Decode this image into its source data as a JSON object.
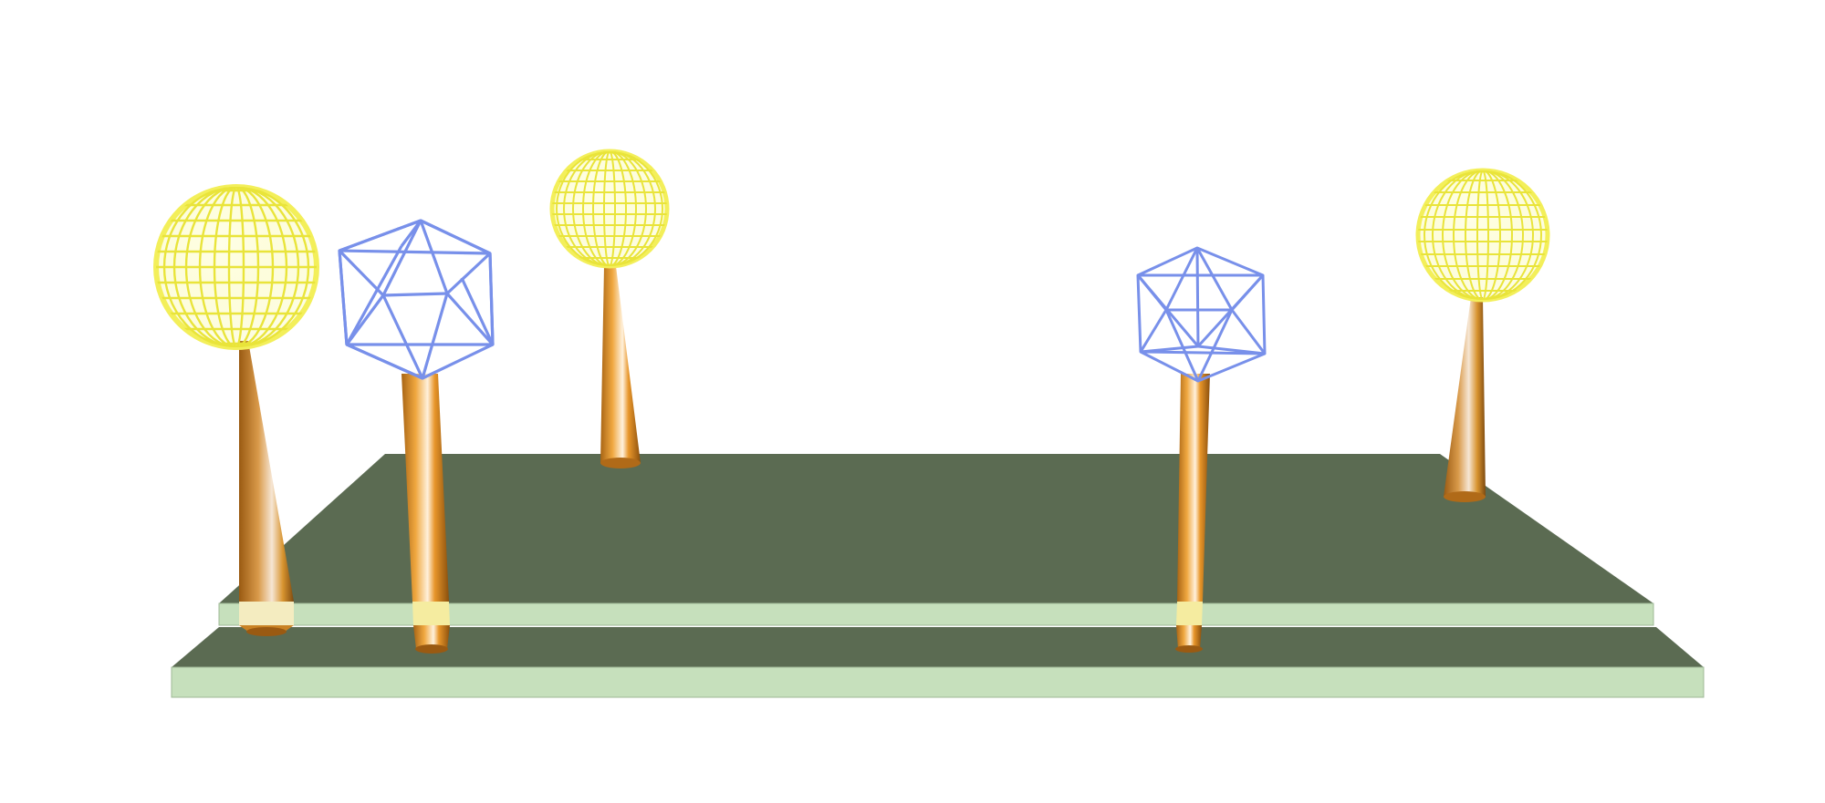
{
  "scene": {
    "background": "#ffffff",
    "platform_top_color": "#5b6b52",
    "platform_edge_color": "#c6e0bc",
    "pillar_color": "#e8962a",
    "sphere_color": "#f3f25a",
    "polyhedron_color": "#7890ea",
    "objects": [
      {
        "kind": "wire-sphere",
        "label": "sphere-1"
      },
      {
        "kind": "wire-icosahedron",
        "label": "icosahedron-1"
      },
      {
        "kind": "wire-sphere",
        "label": "sphere-2"
      },
      {
        "kind": "wire-icosahedron",
        "label": "icosahedron-2"
      },
      {
        "kind": "wire-sphere",
        "label": "sphere-3"
      }
    ]
  }
}
